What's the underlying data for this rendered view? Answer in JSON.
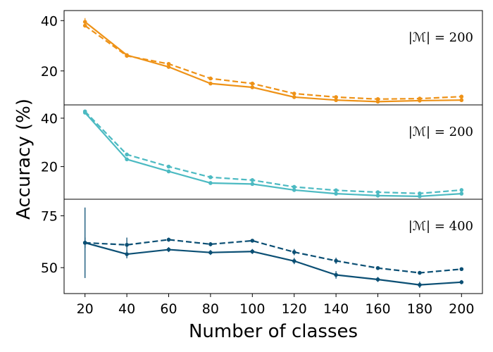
{
  "chart_data": {
    "type": "line",
    "xlabel": "Number of classes",
    "ylabel": "Accuracy (%)",
    "x_ticks": [
      "20",
      "40",
      "60",
      "80",
      "100",
      "120",
      "140",
      "160",
      "180",
      "200"
    ],
    "xlim": [
      10,
      210
    ],
    "panels": [
      {
        "annotation": "|ℳ| = 200",
        "color": "#ee9217",
        "ylim": [
          6.5,
          44
        ],
        "y_ticks": [
          20,
          40
        ],
        "series": [
          {
            "name": "solid",
            "style": "solid",
            "x": [
              20,
              40,
              60,
              80,
              100,
              120,
              140,
              160,
              180,
              200
            ],
            "values": [
              39.5,
              26.3,
              21.6,
              15.0,
              13.5,
              9.6,
              8.4,
              7.8,
              8.2,
              8.4
            ],
            "errors": [
              1.5,
              0.4,
              0.4,
              0.4,
              0.4,
              0.3,
              0.3,
              0.3,
              0.3,
              0.3
            ]
          },
          {
            "name": "dashed",
            "style": "dashed",
            "x": [
              20,
              40,
              60,
              80,
              100,
              120,
              140,
              160,
              180,
              200
            ],
            "values": [
              38.0,
              26.0,
              22.8,
              17.0,
              15.0,
              11.0,
              9.6,
              8.8,
              9.0,
              9.8
            ],
            "errors": [
              0.4,
              0.3,
              0.3,
              0.3,
              0.3,
              0.3,
              0.3,
              0.3,
              0.3,
              0.3
            ]
          }
        ]
      },
      {
        "annotation": "|ℳ| = 200",
        "color": "#4cbac2",
        "ylim": [
          6.5,
          45.5
        ],
        "y_ticks": [
          20,
          40
        ],
        "series": [
          {
            "name": "solid",
            "style": "solid",
            "x": [
              20,
              40,
              60,
              80,
              100,
              120,
              140,
              160,
              180,
              200
            ],
            "values": [
              42.3,
              23.0,
              18.0,
              13.2,
              12.8,
              10.3,
              8.8,
              8.0,
              7.7,
              8.8
            ],
            "errors": [
              0.6,
              0.3,
              0.3,
              0.3,
              0.3,
              0.3,
              0.3,
              0.3,
              0.3,
              0.3
            ]
          },
          {
            "name": "dashed",
            "style": "dashed",
            "x": [
              20,
              40,
              60,
              80,
              100,
              120,
              140,
              160,
              180,
              200
            ],
            "values": [
              42.8,
              25.0,
              20.0,
              15.6,
              14.4,
              11.6,
              10.2,
              9.4,
              8.9,
              10.3
            ],
            "errors": [
              0.6,
              0.3,
              0.3,
              0.3,
              0.3,
              0.3,
              0.3,
              0.3,
              0.3,
              0.3
            ]
          }
        ]
      },
      {
        "annotation": "|ℳ| = 400",
        "color": "#0b4f74",
        "ylim": [
          37.5,
          83
        ],
        "y_ticks": [
          50,
          75
        ],
        "series": [
          {
            "name": "solid",
            "style": "solid",
            "x": [
              20,
              40,
              60,
              80,
              100,
              120,
              140,
              160,
              180,
              200
            ],
            "values": [
              62.0,
              56.5,
              58.7,
              57.3,
              57.8,
              53.2,
              46.5,
              44.3,
              41.7,
              43.0
            ],
            "errors": [
              17.0,
              2.0,
              1.2,
              1.2,
              1.2,
              1.5,
              1.8,
              1.2,
              1.5,
              1.0
            ]
          },
          {
            "name": "dashed",
            "style": "dashed",
            "x": [
              20,
              40,
              60,
              80,
              100,
              120,
              140,
              160,
              180,
              200
            ],
            "values": [
              62.0,
              61.0,
              63.5,
              61.3,
              63.0,
              57.5,
              53.3,
              49.8,
              47.5,
              49.3
            ],
            "errors": [
              2.5,
              3.5,
              1.0,
              1.0,
              0.8,
              1.5,
              1.5,
              0.5,
              0.5,
              0.5
            ]
          }
        ]
      }
    ]
  }
}
